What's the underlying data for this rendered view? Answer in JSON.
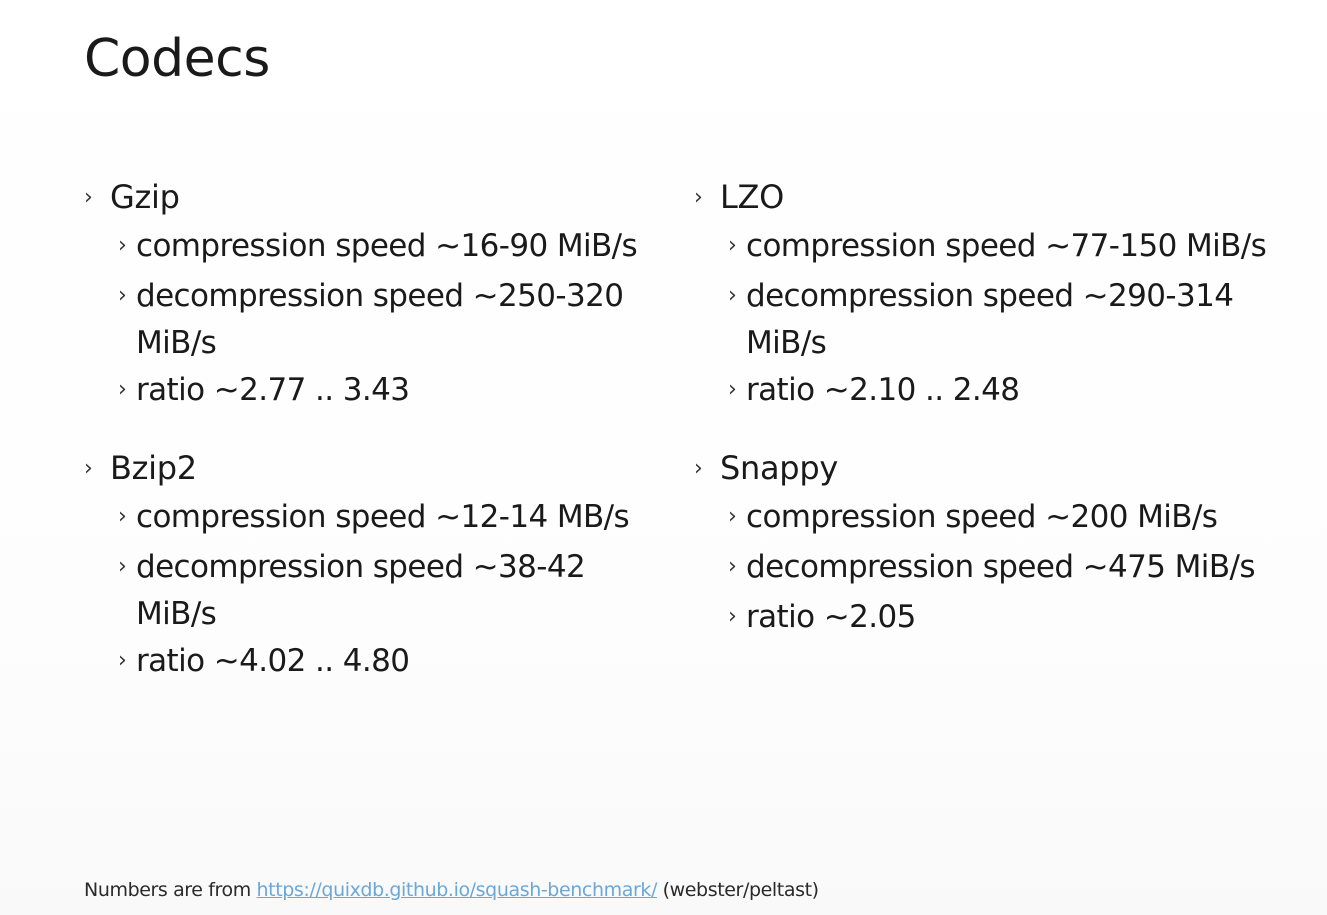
{
  "slide": {
    "title": "Codecs"
  },
  "bullet_glyph": "›",
  "codecs_left": [
    {
      "name": "Gzip",
      "items": [
        "compression speed ~16-90 MiB/s",
        "decompression speed ~250-320 MiB/s",
        "ratio ~2.77 .. 3.43"
      ]
    },
    {
      "name": "Bzip2",
      "items": [
        "compression speed ~12-14 MB/s",
        "decompression speed ~38-42 MiB/s",
        "ratio ~4.02 .. 4.80"
      ]
    }
  ],
  "codecs_right": [
    {
      "name": "LZO",
      "items": [
        "compression speed ~77-150 MiB/s",
        "decompression speed ~290-314 MiB/s",
        "ratio ~2.10 .. 2.48"
      ]
    },
    {
      "name": "Snappy",
      "items": [
        "compression speed ~200 MiB/s",
        "decompression speed ~475 MiB/s",
        "ratio ~2.05"
      ]
    }
  ],
  "footnote": {
    "prefix": "Numbers are from ",
    "link_text": "https://quixdb.github.io/squash-benchmark/",
    "suffix": " (webster/peltast)"
  },
  "colors": {
    "link": "#6aa8d8",
    "text": "#1a1a1a"
  }
}
